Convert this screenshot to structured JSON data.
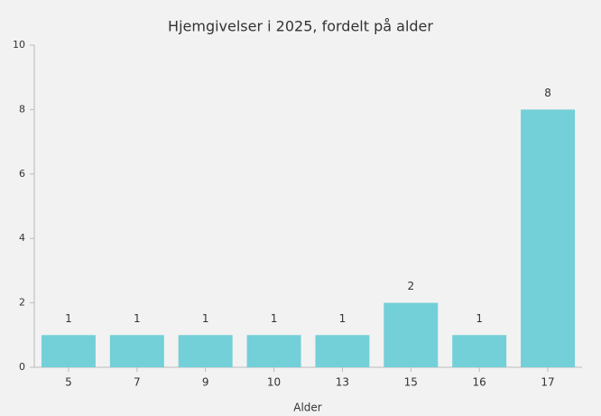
{
  "chart_data": {
    "type": "bar",
    "title": "Hjemgivelser i 2025, fordelt på alder",
    "x_label": "Alder",
    "categories": [
      "5",
      "7",
      "9",
      "10",
      "13",
      "15",
      "16",
      "17"
    ],
    "values": [
      1,
      1,
      1,
      1,
      1,
      2,
      1,
      8
    ],
    "color": "#73cfd8",
    "ylim": [
      0,
      10
    ],
    "yticks": [
      0,
      2,
      4,
      6,
      8,
      10
    ],
    "grid": false
  }
}
